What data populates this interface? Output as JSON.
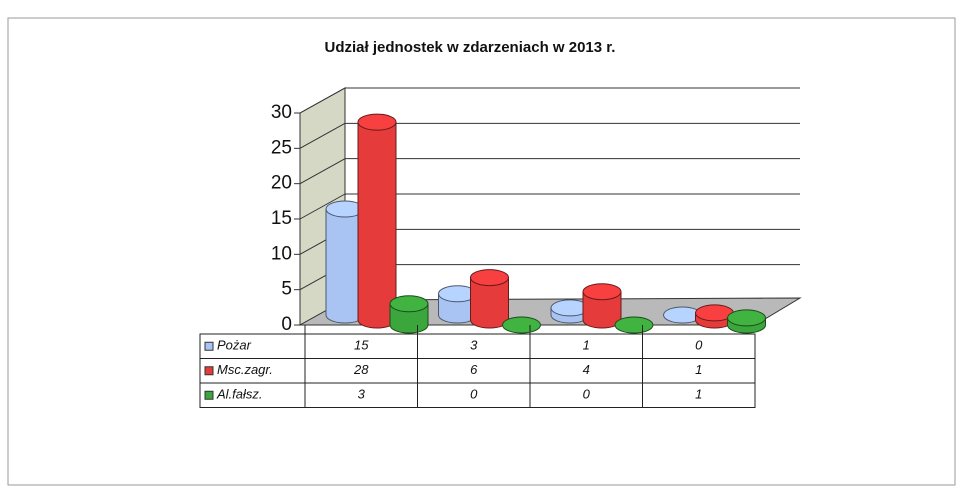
{
  "chart_data": {
    "type": "bar3d-cylinder",
    "title": "Udział jednostek w zdarzeniach w 2013 r.",
    "categories": [
      null,
      null,
      null,
      null
    ],
    "series": [
      {
        "name": "Pożar",
        "color": "#a9c3f2",
        "values": [
          15,
          3,
          1,
          0
        ]
      },
      {
        "name": "Msc.zagr.",
        "color": "#e63b3b",
        "values": [
          28,
          6,
          4,
          1
        ]
      },
      {
        "name": "Al.fałsz.",
        "color": "#3ba63b",
        "values": [
          3,
          0,
          0,
          1
        ]
      }
    ],
    "ylim": [
      0,
      30
    ],
    "yticks": [
      0,
      5,
      10,
      15,
      20,
      25,
      30
    ],
    "grid": true
  }
}
